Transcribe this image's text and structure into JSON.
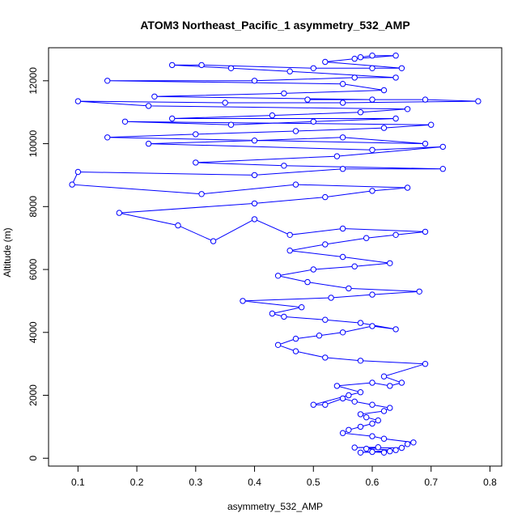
{
  "chart_data": {
    "type": "scatter",
    "title": "ATOM3 Northeast_Pacific_1 asymmetry_532_AMP",
    "xlabel": "asymmetry_532_AMP",
    "ylabel": "Altitude (m)",
    "xlim": [
      0.05,
      0.82
    ],
    "ylim": [
      -250,
      13050
    ],
    "x_ticks": [
      0.1,
      0.2,
      0.3,
      0.4,
      0.5,
      0.6,
      0.7,
      0.8
    ],
    "x_tick_labels": [
      "0.1",
      "0.2",
      "0.3",
      "0.4",
      "0.5",
      "0.6",
      "0.7",
      "0.8"
    ],
    "y_ticks": [
      0,
      2000,
      4000,
      6000,
      8000,
      10000,
      12000
    ],
    "y_tick_labels": [
      "0",
      "2000",
      "4000",
      "6000",
      "8000",
      "10000",
      "12000"
    ],
    "grid": false,
    "legend": "none",
    "series": [
      {
        "color": "#0000ff",
        "marker": "open-circle",
        "line": true,
        "points": [
          [
            0.6,
            200
          ],
          [
            0.62,
            180
          ],
          [
            0.63,
            220
          ],
          [
            0.58,
            180
          ],
          [
            0.64,
            260
          ],
          [
            0.59,
            300
          ],
          [
            0.61,
            350
          ],
          [
            0.57,
            340
          ],
          [
            0.65,
            330
          ],
          [
            0.66,
            450
          ],
          [
            0.67,
            500
          ],
          [
            0.62,
            620
          ],
          [
            0.6,
            700
          ],
          [
            0.55,
            800
          ],
          [
            0.56,
            900
          ],
          [
            0.58,
            1000
          ],
          [
            0.6,
            1100
          ],
          [
            0.61,
            1200
          ],
          [
            0.59,
            1300
          ],
          [
            0.58,
            1400
          ],
          [
            0.62,
            1500
          ],
          [
            0.63,
            1600
          ],
          [
            0.6,
            1700
          ],
          [
            0.57,
            1800
          ],
          [
            0.55,
            1900
          ],
          [
            0.52,
            1700
          ],
          [
            0.5,
            1700
          ],
          [
            0.56,
            2000
          ],
          [
            0.58,
            2100
          ],
          [
            0.54,
            2300
          ],
          [
            0.6,
            2400
          ],
          [
            0.63,
            2300
          ],
          [
            0.65,
            2400
          ],
          [
            0.62,
            2600
          ],
          [
            0.69,
            3000
          ],
          [
            0.58,
            3100
          ],
          [
            0.52,
            3200
          ],
          [
            0.47,
            3400
          ],
          [
            0.44,
            3600
          ],
          [
            0.47,
            3800
          ],
          [
            0.51,
            3900
          ],
          [
            0.55,
            4000
          ],
          [
            0.6,
            4200
          ],
          [
            0.64,
            4100
          ],
          [
            0.58,
            4300
          ],
          [
            0.52,
            4400
          ],
          [
            0.45,
            4500
          ],
          [
            0.43,
            4600
          ],
          [
            0.48,
            4800
          ],
          [
            0.38,
            5000
          ],
          [
            0.53,
            5100
          ],
          [
            0.6,
            5200
          ],
          [
            0.68,
            5300
          ],
          [
            0.56,
            5400
          ],
          [
            0.49,
            5600
          ],
          [
            0.44,
            5800
          ],
          [
            0.5,
            6000
          ],
          [
            0.57,
            6100
          ],
          [
            0.63,
            6200
          ],
          [
            0.55,
            6400
          ],
          [
            0.46,
            6600
          ],
          [
            0.52,
            6800
          ],
          [
            0.59,
            7000
          ],
          [
            0.64,
            7100
          ],
          [
            0.69,
            7200
          ],
          [
            0.55,
            7300
          ],
          [
            0.46,
            7100
          ],
          [
            0.4,
            7600
          ],
          [
            0.33,
            6900
          ],
          [
            0.27,
            7400
          ],
          [
            0.17,
            7800
          ],
          [
            0.4,
            8100
          ],
          [
            0.52,
            8300
          ],
          [
            0.6,
            8500
          ],
          [
            0.66,
            8600
          ],
          [
            0.47,
            8700
          ],
          [
            0.31,
            8400
          ],
          [
            0.09,
            8700
          ],
          [
            0.1,
            9100
          ],
          [
            0.4,
            9000
          ],
          [
            0.55,
            9200
          ],
          [
            0.72,
            9200
          ],
          [
            0.45,
            9300
          ],
          [
            0.3,
            9400
          ],
          [
            0.54,
            9600
          ],
          [
            0.72,
            9900
          ],
          [
            0.6,
            9800
          ],
          [
            0.22,
            10000
          ],
          [
            0.4,
            10100
          ],
          [
            0.55,
            10200
          ],
          [
            0.69,
            10000
          ],
          [
            0.15,
            10200
          ],
          [
            0.3,
            10300
          ],
          [
            0.47,
            10400
          ],
          [
            0.62,
            10500
          ],
          [
            0.7,
            10600
          ],
          [
            0.18,
            10700
          ],
          [
            0.36,
            10600
          ],
          [
            0.5,
            10700
          ],
          [
            0.64,
            10800
          ],
          [
            0.26,
            10800
          ],
          [
            0.43,
            10900
          ],
          [
            0.58,
            11000
          ],
          [
            0.66,
            11100
          ],
          [
            0.22,
            11200
          ],
          [
            0.1,
            11350
          ],
          [
            0.35,
            11300
          ],
          [
            0.55,
            11300
          ],
          [
            0.78,
            11350
          ],
          [
            0.69,
            11400
          ],
          [
            0.49,
            11400
          ],
          [
            0.6,
            11400
          ],
          [
            0.23,
            11500
          ],
          [
            0.45,
            11600
          ],
          [
            0.62,
            11700
          ],
          [
            0.55,
            11900
          ],
          [
            0.15,
            12000
          ],
          [
            0.4,
            12000
          ],
          [
            0.57,
            12100
          ],
          [
            0.64,
            12100
          ],
          [
            0.46,
            12300
          ],
          [
            0.36,
            12400
          ],
          [
            0.26,
            12500
          ],
          [
            0.31,
            12500
          ],
          [
            0.5,
            12400
          ],
          [
            0.6,
            12400
          ],
          [
            0.65,
            12400
          ],
          [
            0.52,
            12600
          ],
          [
            0.57,
            12700
          ],
          [
            0.64,
            12800
          ],
          [
            0.6,
            12800
          ],
          [
            0.58,
            12750
          ]
        ]
      }
    ]
  }
}
